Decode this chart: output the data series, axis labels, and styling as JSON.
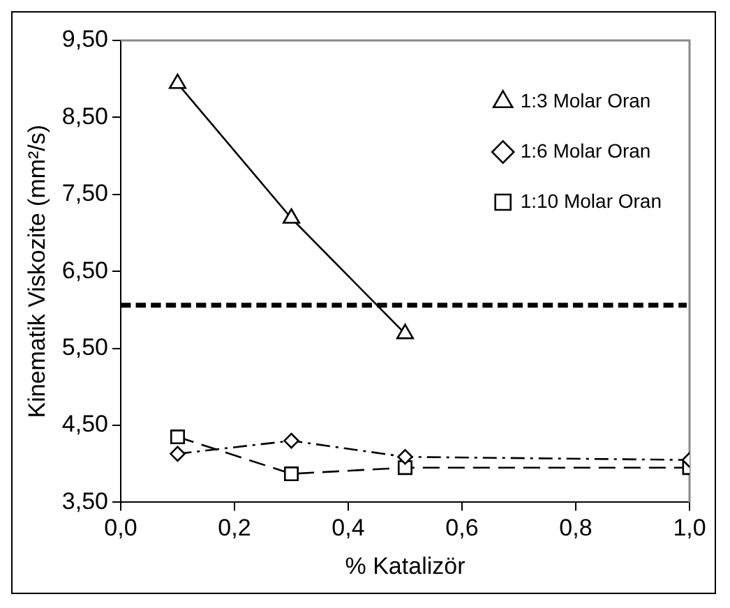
{
  "chart_data": {
    "type": "line",
    "xlabel": "% Katalizör",
    "ylabel": "Kinematik Viskozite (mm²/s)",
    "xlim": [
      0,
      1
    ],
    "xticks": [
      {
        "value": 0,
        "label": "0,0"
      },
      {
        "value": 0.2,
        "label": "0,2"
      },
      {
        "value": 0.4,
        "label": "0,4"
      },
      {
        "value": 0.6,
        "label": "0,6"
      },
      {
        "value": 0.8,
        "label": "0,8"
      },
      {
        "value": 1,
        "label": "1,0"
      }
    ],
    "ylim": [
      3.5,
      9.5
    ],
    "yticks": [
      {
        "value": 3.5,
        "label": "3,50"
      },
      {
        "value": 4.5,
        "label": "4,50"
      },
      {
        "value": 5.5,
        "label": "5,50"
      },
      {
        "value": 6.5,
        "label": "6,50"
      },
      {
        "value": 7.5,
        "label": "7,50"
      },
      {
        "value": 8.5,
        "label": "8,50"
      },
      {
        "value": 9.5,
        "label": "9,50"
      }
    ],
    "grid": false,
    "legend": "top right",
    "series": [
      {
        "name": "1:3 Molar Oran",
        "color": "#000000",
        "marker": "triangle",
        "line_style": "solid",
        "x": [
          0.1,
          0.3,
          0.5
        ],
        "values": [
          8.94,
          7.19,
          5.69
        ]
      },
      {
        "name": "1:6 Molar Oran",
        "color": "#000000",
        "marker": "diamond",
        "line_style": "dotted",
        "x": [
          0.1,
          0.3,
          0.5,
          1.0
        ],
        "values": [
          4.13,
          4.3,
          4.09,
          4.05
        ]
      },
      {
        "name": "1:10 Molar Oran",
        "color": "#000000",
        "marker": "square",
        "line_style": "dashed",
        "x": [
          0.1,
          0.3,
          0.5,
          1.0
        ],
        "values": [
          4.35,
          3.87,
          3.95,
          3.95
        ]
      }
    ],
    "ref_lines": [
      {
        "axis": "y",
        "value": 6.06,
        "color": "#000000",
        "line_style": "dashed"
      }
    ]
  }
}
